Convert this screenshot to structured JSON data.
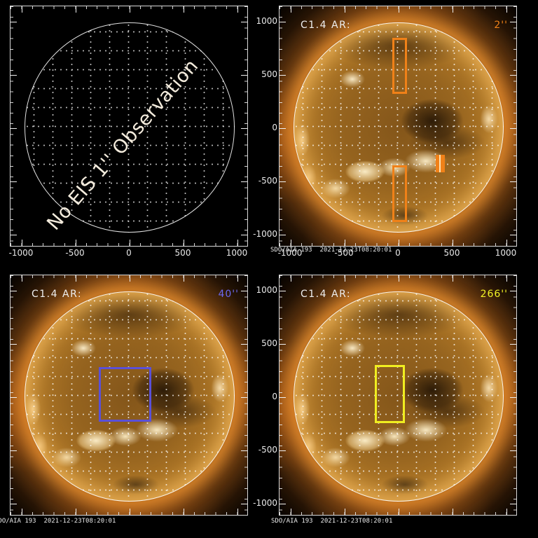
{
  "figure": {
    "x_ticks": [
      "-1000",
      "-500",
      "0",
      "500",
      "1000"
    ],
    "y_ticks": [
      "1000",
      "500",
      "0",
      "-500",
      "-1000"
    ],
    "timestamp": "SDO/AIA 193  2021-12-23T08:20:01"
  },
  "panels": [
    {
      "id": "eis-1arcsec",
      "message": "No EIS 1'' Observation"
    },
    {
      "id": "eis-2arcsec",
      "label": "C1.4 AR:",
      "resolution": "2''",
      "accent_color": "#f08118"
    },
    {
      "id": "eis-40arcsec",
      "label": "C1.4 AR:",
      "resolution": "40''",
      "accent_color": "#6b68f0"
    },
    {
      "id": "eis-266arcsec",
      "label": "C1.4 AR:",
      "resolution": "266''",
      "accent_color": "#f2f226"
    }
  ],
  "chart_data": [
    {
      "type": "scatter",
      "panel": "top-left",
      "title": "",
      "annotation": "No EIS 1'' Observation",
      "content": "empty solar disk with dotted heliographic grid, no image",
      "xlim": [
        -1150,
        1150
      ],
      "ylim": [
        -1150,
        1150
      ],
      "x_ticks": [
        -1000,
        -500,
        0,
        500,
        1000
      ],
      "y_ticks_visible": false,
      "grid": "dotted heliographic"
    },
    {
      "type": "heatmap",
      "panel": "top-right",
      "title": "C1.4 AR:",
      "slit_width_label": "2''",
      "image": "SDO/AIA 193 full-disk EUV sun",
      "timestamp": "2021-12-23T08:20:01",
      "xlim": [
        -1150,
        1150
      ],
      "ylim": [
        -1150,
        1150
      ],
      "x_ticks": [
        -1000,
        -500,
        0,
        500,
        1000
      ],
      "y_ticks": [
        1000,
        500,
        0,
        -500,
        -1000
      ],
      "overlays": [
        {
          "shape": "rect-outline",
          "color": "#f08118",
          "x_arcsec": [
            -117,
            20
          ],
          "y_arcsec": [
            318,
            837
          ]
        },
        {
          "shape": "rect-outline",
          "color": "#f08118",
          "x_arcsec": [
            -117,
            20
          ],
          "y_arcsec": [
            -870,
            -344
          ]
        },
        {
          "shape": "rect-filled",
          "color": "#f08118",
          "x_arcsec": [
            286,
            370
          ],
          "y_arcsec": [
            -409,
            -247
          ]
        }
      ]
    },
    {
      "type": "heatmap",
      "panel": "bottom-left",
      "title": "C1.4 AR:",
      "slit_width_label": "40''",
      "image": "SDO/AIA 193 full-disk EUV sun",
      "timestamp": "2021-12-23T08:20:01",
      "xlim": [
        -1150,
        1150
      ],
      "ylim": [
        -1150,
        1150
      ],
      "x_ticks_visible": false,
      "y_ticks_visible": false,
      "overlays": [
        {
          "shape": "rect-outline",
          "color": "#5a50d8",
          "x_arcsec": [
            -286,
            201
          ],
          "y_arcsec": [
            -234,
            273
          ]
        }
      ]
    },
    {
      "type": "heatmap",
      "panel": "bottom-right",
      "title": "C1.4 AR:",
      "slit_width_label": "266''",
      "image": "SDO/AIA 193 full-disk EUV sun",
      "timestamp": "2021-12-23T08:20:01",
      "xlim": [
        -1150,
        1150
      ],
      "ylim": [
        -1150,
        1150
      ],
      "x_ticks_visible": false,
      "y_ticks": [
        1000,
        500,
        0,
        -500,
        -1000
      ],
      "overlays": [
        {
          "shape": "rect-outline",
          "color": "#f0ee20",
          "x_arcsec": [
            -221,
            58
          ],
          "y_arcsec": [
            -247,
            292
          ]
        }
      ]
    }
  ]
}
